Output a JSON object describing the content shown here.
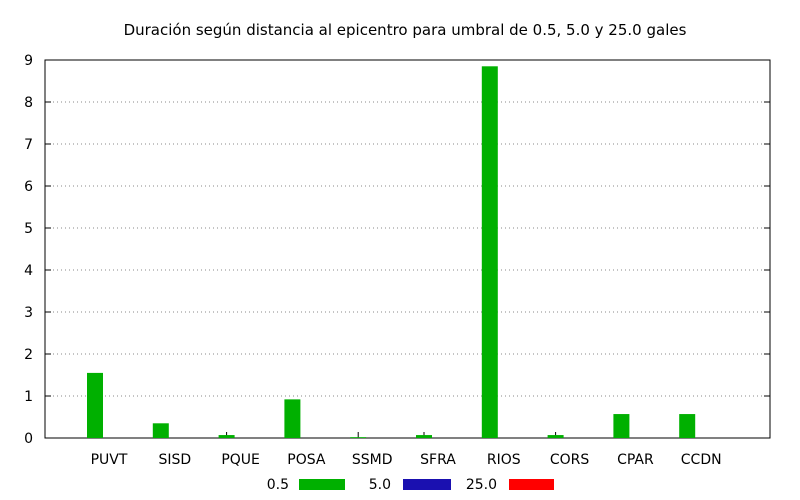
{
  "chart_data": {
    "type": "bar",
    "title": "Duración según distancia al epicentro para umbral de 0.5, 5.0 y 25.0 gales",
    "xlabel": "",
    "ylabel": "",
    "ylim": [
      0,
      9
    ],
    "yticks": [
      0,
      1,
      2,
      3,
      4,
      5,
      6,
      7,
      8,
      9
    ],
    "grid": true,
    "legend_position": "bottom",
    "categories": [
      "PUVT",
      "SISD",
      "PQUE",
      "POSA",
      "SSMD",
      "SFRA",
      "RIOS",
      "CORS",
      "CPAR",
      "CCDN"
    ],
    "series": [
      {
        "name": "0.5",
        "color": "#00b000",
        "values": [
          1.55,
          0.35,
          0.07,
          0.92,
          0.02,
          0.07,
          8.85,
          0.07,
          0.57,
          0.57
        ]
      },
      {
        "name": "5.0",
        "color": "#1a10b0",
        "values": [
          0,
          0,
          0,
          0,
          0,
          0,
          0,
          0,
          0,
          0
        ]
      },
      {
        "name": "25.0",
        "color": "#ff0000",
        "values": [
          0,
          0,
          0,
          0,
          0,
          0,
          0,
          0,
          0,
          0
        ]
      }
    ]
  }
}
